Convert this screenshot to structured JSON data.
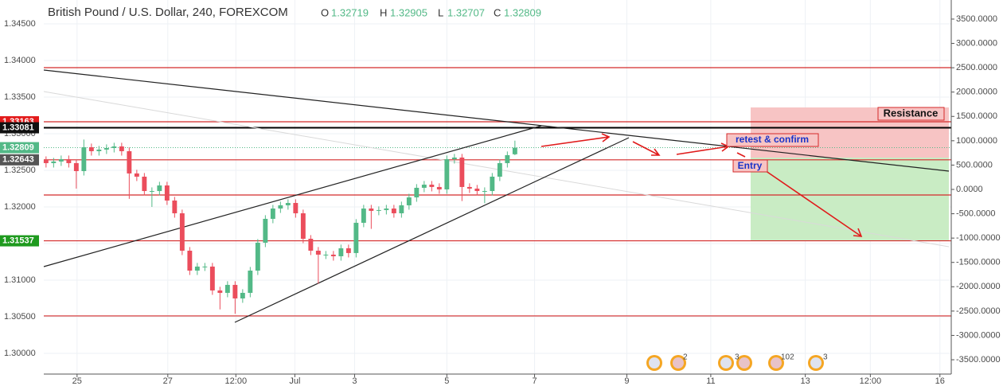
{
  "header": {
    "title": "British Pound / U.S. Dollar, 240, FOREXCOM",
    "open_label": "O",
    "open": "1.32719",
    "high_label": "H",
    "high": "1.32905",
    "low_label": "L",
    "low": "1.32707",
    "close_label": "C",
    "close": "1.32809"
  },
  "chart_data": {
    "type": "candlestick",
    "up_color": "#53b987",
    "down_color": "#eb4d5c",
    "open": [
      1.3264,
      1.32598,
      1.3262,
      1.32652,
      1.32598,
      1.32489,
      1.32815,
      1.32761,
      1.32783,
      1.32804,
      1.32826,
      1.32761,
      1.32457,
      1.32413,
      1.32217,
      1.32217,
      1.32293,
      1.32087,
      1.31913,
      1.31402,
      1.3113,
      1.31185,
      1.31185,
      1.30859,
      1.30826,
      1.30935,
      1.3075,
      1.30826,
      1.3113,
      1.31511,
      1.31837,
      1.31978,
      1.32022,
      1.32054,
      1.31913,
      1.31565,
      1.31402,
      1.31348,
      1.31348,
      1.31326,
      1.31435,
      1.3137,
      1.31783,
      1.31978,
      1.31946,
      1.31957,
      1.31978,
      1.31913,
      1.32022,
      1.3213,
      1.32261,
      1.32304,
      1.32272,
      1.32239,
      1.32652,
      1.32674,
      1.32272,
      1.3225,
      1.32217,
      1.32217,
      1.32413,
      1.32598,
      1.32719
    ],
    "high": [
      1.3269,
      1.3267,
      1.32702,
      1.32702,
      1.32648,
      1.3292,
      1.32865,
      1.32833,
      1.32854,
      1.32876,
      1.32876,
      1.32811,
      1.32507,
      1.32463,
      1.32267,
      1.32343,
      1.32343,
      1.32137,
      1.31963,
      1.31452,
      1.31235,
      1.31235,
      1.31235,
      1.30909,
      1.30985,
      1.30985,
      1.30876,
      1.3118,
      1.31561,
      1.31887,
      1.32028,
      1.32072,
      1.32104,
      1.32104,
      1.31963,
      1.31615,
      1.31452,
      1.31398,
      1.31398,
      1.31485,
      1.31485,
      1.31833,
      1.32028,
      1.32028,
      1.32007,
      1.32028,
      1.32028,
      1.32072,
      1.3218,
      1.32311,
      1.32354,
      1.32354,
      1.32322,
      1.32702,
      1.32724,
      1.32724,
      1.32322,
      1.323,
      1.32267,
      1.32463,
      1.32648,
      1.32757,
      1.32905
    ],
    "low": [
      1.32538,
      1.32538,
      1.3256,
      1.32538,
      1.3225,
      1.32429,
      1.32701,
      1.32701,
      1.32723,
      1.32744,
      1.32701,
      1.3211,
      1.32353,
      1.32157,
      1.32,
      1.32157,
      1.32027,
      1.31853,
      1.31342,
      1.3107,
      1.3107,
      1.31125,
      1.30799,
      1.306,
      1.30766,
      1.3054,
      1.3069,
      1.30766,
      1.3107,
      1.31451,
      1.31777,
      1.31918,
      1.31962,
      1.31853,
      1.31505,
      1.31342,
      1.3095,
      1.31288,
      1.31266,
      1.31266,
      1.3131,
      1.3131,
      1.31723,
      1.317,
      1.31886,
      1.31897,
      1.31853,
      1.31853,
      1.31962,
      1.3207,
      1.32201,
      1.32212,
      1.32179,
      1.32179,
      1.32592,
      1.3208,
      1.3219,
      1.32157,
      1.3205,
      1.32157,
      1.32353,
      1.32538,
      1.32707
    ],
    "close": [
      1.32598,
      1.3262,
      1.32652,
      1.32598,
      1.32489,
      1.32815,
      1.32761,
      1.32783,
      1.32804,
      1.32826,
      1.32761,
      1.32457,
      1.32413,
      1.32217,
      1.32217,
      1.32293,
      1.32087,
      1.31913,
      1.31402,
      1.3113,
      1.31185,
      1.31185,
      1.30859,
      1.30826,
      1.30935,
      1.3075,
      1.30826,
      1.3113,
      1.31511,
      1.31837,
      1.31978,
      1.32022,
      1.32054,
      1.31913,
      1.31565,
      1.31402,
      1.31348,
      1.31348,
      1.31326,
      1.31435,
      1.3137,
      1.31783,
      1.31978,
      1.31946,
      1.31957,
      1.31978,
      1.31913,
      1.32022,
      1.3213,
      1.32261,
      1.32304,
      1.32272,
      1.32239,
      1.32652,
      1.32674,
      1.32272,
      1.3225,
      1.32217,
      1.32217,
      1.32413,
      1.32598,
      1.32707,
      1.32809
    ],
    "xlim": [
      -0.3,
      119.7
    ],
    "xticks": [
      {
        "value": 4.1,
        "label": "25"
      },
      {
        "value": 16.1,
        "label": "27"
      },
      {
        "value": 25.1,
        "label": "12:00"
      },
      {
        "value": 32.9,
        "label": "Jul"
      },
      {
        "value": 40.8,
        "label": "3"
      },
      {
        "value": 53,
        "label": "5"
      },
      {
        "value": 64.6,
        "label": "7"
      },
      {
        "value": 76.8,
        "label": "9"
      },
      {
        "value": 87.9,
        "label": "11"
      },
      {
        "value": 100.4,
        "label": "13"
      },
      {
        "value": 109,
        "label": "12:00"
      },
      {
        "value": 118.2,
        "label": "16"
      }
    ],
    "ylim": [
      1.29717,
      1.34826
    ],
    "yticks": [
      {
        "value": 1.345,
        "label": "1.34500"
      },
      {
        "value": 1.34,
        "label": "1.34000"
      },
      {
        "value": 1.335,
        "label": "1.33500"
      },
      {
        "value": 1.33,
        "label": "1.33000"
      },
      {
        "value": 1.325,
        "label": "1.32500"
      },
      {
        "value": 1.32,
        "label": "1.32000"
      },
      {
        "value": 1.315,
        "label": "1.31500"
      },
      {
        "value": 1.31,
        "label": "1.31000"
      },
      {
        "value": 1.305,
        "label": "1.30500"
      },
      {
        "value": 1.3,
        "label": "1.30000"
      }
    ],
    "y2lim": [
      -3794,
      3892
    ],
    "y2ticks": [
      {
        "value": 3500,
        "label": "3500.0000"
      },
      {
        "value": 3000,
        "label": "3000.0000"
      },
      {
        "value": 2500,
        "label": "2500.0000"
      },
      {
        "value": 2000,
        "label": "2000.0000"
      },
      {
        "value": 1500,
        "label": "1500.0000"
      },
      {
        "value": 1000,
        "label": "1000.0000"
      },
      {
        "value": 500,
        "label": "500.0000"
      },
      {
        "value": 0,
        "label": "0.0000"
      },
      {
        "value": -500,
        "label": "-500.0000"
      },
      {
        "value": -1000,
        "label": "-1000.0000"
      },
      {
        "value": -1500,
        "label": "-1500.0000"
      },
      {
        "value": -2000,
        "label": "-2000.0000"
      },
      {
        "value": -2500,
        "label": "-2500.0000"
      },
      {
        "value": -3000,
        "label": "-3000.0000"
      },
      {
        "value": -3500,
        "label": "-3500.0000"
      }
    ],
    "grid": true,
    "levels": [
      1.33902,
      1.33163,
      1.32643,
      1.32163,
      1.31537,
      1.30511
    ],
    "level_color": "#d42a2a",
    "black_level": 1.33081,
    "price_labels": [
      {
        "value": 1.33163,
        "label": "1.33163",
        "color": "#e31c1c"
      },
      {
        "value": 1.33081,
        "label": "1.33081",
        "color": "#111111"
      },
      {
        "value": 1.32809,
        "label": "1.32809",
        "color": "#53b987"
      },
      {
        "value": 1.32643,
        "label": "1.32643",
        "color": "#555555"
      },
      {
        "value": 1.31537,
        "label": "1.31537",
        "color": "#1e9a1e"
      }
    ],
    "annotations": [
      "Resistance",
      "retest & confirm",
      "Entry"
    ],
    "event_counts": [
      2,
      3,
      102,
      3
    ]
  }
}
